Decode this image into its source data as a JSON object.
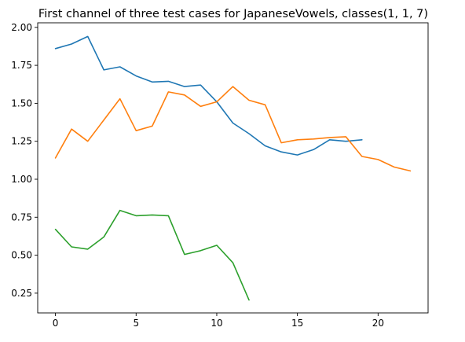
{
  "chart_data": {
    "type": "line",
    "title": "First channel of three test cases for JapaneseVowels, classes(1, 1, 7)",
    "xlabel": "",
    "ylabel": "",
    "xlim": [
      -1.1,
      23.1
    ],
    "ylim": [
      0.12,
      2.03
    ],
    "x_ticks": [
      0,
      5,
      10,
      15,
      20
    ],
    "x_tick_labels": [
      "0",
      "5",
      "10",
      "15",
      "20"
    ],
    "y_ticks": [
      0.25,
      0.5,
      0.75,
      1.0,
      1.25,
      1.5,
      1.75,
      2.0
    ],
    "y_tick_labels": [
      "0.25",
      "0.50",
      "0.75",
      "1.00",
      "1.25",
      "1.50",
      "1.75",
      "2.00"
    ],
    "grid": false,
    "legend": "none",
    "series": [
      {
        "color": "#1f77b4",
        "x": [
          0,
          1,
          2,
          3,
          4,
          5,
          6,
          7,
          8,
          9,
          10,
          11,
          12,
          13,
          14,
          15,
          16,
          17,
          18,
          19
        ],
        "values": [
          1.86,
          1.89,
          1.94,
          1.72,
          1.74,
          1.68,
          1.64,
          1.645,
          1.61,
          1.62,
          1.51,
          1.37,
          1.3,
          1.22,
          1.18,
          1.16,
          1.195,
          1.26,
          1.25,
          1.26
        ]
      },
      {
        "color": "#ff7f0e",
        "x": [
          0,
          1,
          2,
          3,
          4,
          5,
          6,
          7,
          8,
          9,
          10,
          11,
          12,
          13,
          14,
          15,
          16,
          17,
          18,
          19,
          20,
          21,
          22
        ],
        "values": [
          1.14,
          1.33,
          1.25,
          1.39,
          1.53,
          1.32,
          1.35,
          1.575,
          1.555,
          1.48,
          1.51,
          1.61,
          1.52,
          1.49,
          1.24,
          1.26,
          1.265,
          1.275,
          1.28,
          1.15,
          1.13,
          1.08,
          1.055
        ]
      },
      {
        "color": "#2ca02c",
        "x": [
          0,
          1,
          2,
          3,
          4,
          5,
          6,
          7,
          8,
          9,
          10,
          11,
          12
        ],
        "values": [
          0.67,
          0.555,
          0.54,
          0.62,
          0.795,
          0.76,
          0.765,
          0.76,
          0.505,
          0.53,
          0.565,
          0.45,
          0.205
        ]
      }
    ]
  }
}
